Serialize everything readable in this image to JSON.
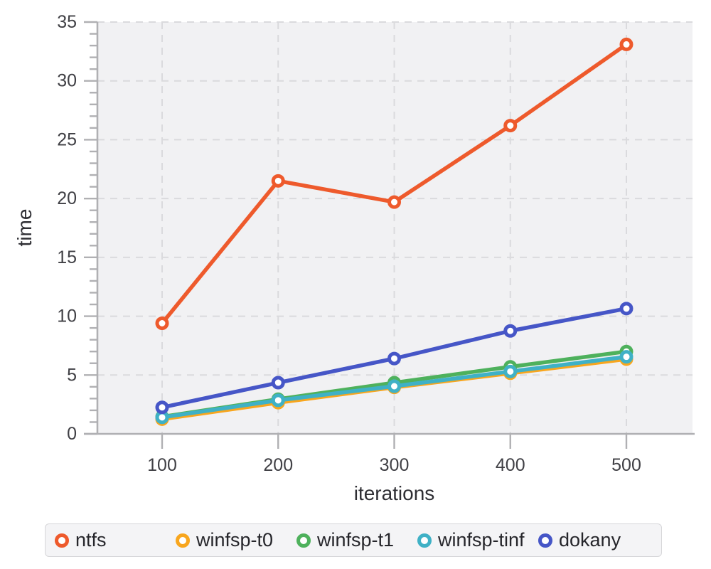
{
  "chart_data": {
    "type": "line",
    "title": "",
    "xlabel": "iterations",
    "ylabel": "time",
    "x": [
      100,
      200,
      300,
      400,
      500
    ],
    "xlim": [
      44,
      556
    ],
    "ylim": [
      0,
      35
    ],
    "ytick_major": [
      0,
      5,
      10,
      15,
      20,
      25,
      30,
      35
    ],
    "ytick_minor_step": 1,
    "grid": "dashed",
    "legend_position": "bottom",
    "panel_bg": "#f1f1f3",
    "axis_color": "#b0b0b3",
    "grid_color": "#dadadd",
    "tick_label_color": "#404045",
    "axis_title_color": "#2e2e33",
    "series": [
      {
        "name": "ntfs",
        "color": "#ee5a2c",
        "values": [
          9.4,
          21.5,
          19.7,
          26.2,
          33.1
        ]
      },
      {
        "name": "winfsp-t0",
        "color": "#f8a61e",
        "values": [
          1.25,
          2.65,
          3.95,
          5.15,
          6.35
        ]
      },
      {
        "name": "winfsp-t1",
        "color": "#4eb15c",
        "values": [
          1.45,
          2.95,
          4.35,
          5.7,
          7.0
        ]
      },
      {
        "name": "winfsp-tinf",
        "color": "#3fb1c6",
        "values": [
          1.4,
          2.85,
          4.05,
          5.3,
          6.55
        ]
      },
      {
        "name": "dokany",
        "color": "#4656c7",
        "values": [
          2.25,
          4.35,
          6.4,
          8.75,
          10.65
        ]
      }
    ]
  }
}
